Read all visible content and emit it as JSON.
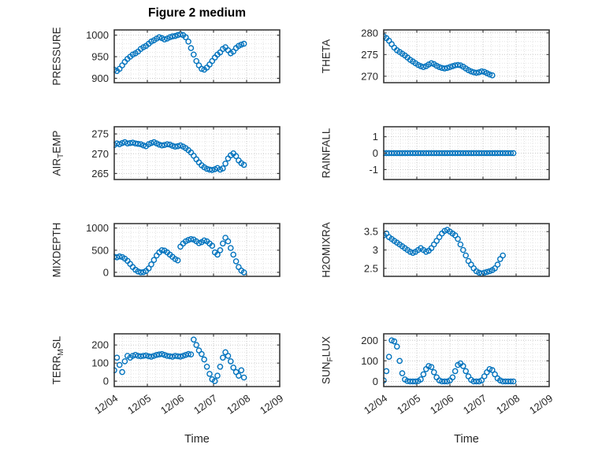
{
  "title": "Figure 2 medium",
  "xlabel": "Time",
  "accent_color": "#0072BD",
  "grid_major_color": "#c8c8c8",
  "grid_minor_color": "#e3e3e3",
  "axis_color": "#3b3b3b",
  "x_ticks": [
    4,
    5,
    6,
    7,
    8,
    9
  ],
  "x_tick_labels": [
    "12/04",
    "12/05",
    "12/06",
    "12/07",
    "12/08",
    "12/09"
  ],
  "chart_data": [
    {
      "name": "PRESSURE",
      "type": "scatter",
      "row": 0,
      "col": 0,
      "ylabel": {
        "pre": "PRESSURE",
        "sub": "",
        "post": ""
      },
      "yticks": [
        900,
        950,
        1000
      ],
      "ylim": [
        890,
        1012
      ],
      "xlim": [
        4,
        9
      ],
      "x_start": 4.0,
      "x_step": 0.08,
      "y": [
        920,
        917,
        922,
        930,
        938,
        945,
        950,
        955,
        958,
        962,
        968,
        972,
        975,
        980,
        985,
        988,
        992,
        995,
        993,
        990,
        992,
        995,
        997,
        998,
        1000,
        1002,
        1000,
        995,
        985,
        970,
        955,
        940,
        930,
        922,
        920,
        925,
        932,
        940,
        948,
        955,
        960,
        968,
        972,
        965,
        958,
        962,
        970,
        975,
        978,
        980
      ]
    },
    {
      "name": "THETA",
      "type": "scatter",
      "row": 0,
      "col": 1,
      "ylabel": {
        "pre": "THETA",
        "sub": "",
        "post": ""
      },
      "yticks": [
        270,
        275,
        280
      ],
      "ylim": [
        268.5,
        280.7
      ],
      "xlim": [
        4,
        9
      ],
      "x_start": 4.0,
      "x_step": 0.08,
      "y": [
        279.2,
        278.8,
        278.2,
        277.4,
        276.6,
        276.0,
        275.6,
        275.2,
        274.8,
        274.3,
        273.8,
        273.4,
        273.0,
        272.6,
        272.3,
        272.1,
        272.3,
        272.7,
        273.0,
        272.8,
        272.4,
        272.1,
        271.9,
        271.8,
        271.9,
        272.1,
        272.3,
        272.5,
        272.6,
        272.5,
        272.2,
        271.8,
        271.4,
        271.1,
        270.9,
        270.8,
        270.9,
        271.1,
        271.0,
        270.7,
        270.4,
        270.2
      ]
    },
    {
      "name": "AIR_TEMP",
      "type": "scatter",
      "row": 1,
      "col": 0,
      "ylabel": {
        "pre": "AIR",
        "sub": "T",
        "post": "EMP"
      },
      "yticks": [
        265,
        270,
        275
      ],
      "ylim": [
        263.5,
        276.8
      ],
      "xlim": [
        4,
        9
      ],
      "x_start": 4.0,
      "x_step": 0.08,
      "y": [
        272.2,
        272.6,
        272.4,
        272.7,
        272.9,
        272.6,
        272.7,
        272.8,
        272.6,
        272.5,
        272.4,
        272.1,
        271.9,
        272.4,
        272.7,
        272.9,
        272.6,
        272.3,
        272.1,
        272.2,
        272.4,
        272.3,
        272.0,
        271.8,
        271.9,
        272.1,
        271.8,
        271.4,
        270.9,
        270.3,
        269.5,
        268.6,
        267.8,
        267.1,
        266.6,
        266.2,
        266.0,
        265.9,
        266.1,
        266.4,
        266.0,
        266.3,
        267.5,
        268.8,
        269.6,
        270.1,
        269.4,
        268.3,
        267.6,
        267.2
      ]
    },
    {
      "name": "RAINFALL",
      "type": "scatter",
      "row": 1,
      "col": 1,
      "ylabel": {
        "pre": "RAINFALL",
        "sub": "",
        "post": ""
      },
      "yticks": [
        -1,
        0,
        1
      ],
      "ylim": [
        -1.6,
        1.6
      ],
      "xlim": [
        4,
        9
      ],
      "x_start": 4.0,
      "x_step": 0.08,
      "y": [
        0,
        0,
        0,
        0,
        0,
        0,
        0,
        0,
        0,
        0,
        0,
        0,
        0,
        0,
        0,
        0,
        0,
        0,
        0,
        0,
        0,
        0,
        0,
        0,
        0,
        0,
        0,
        0,
        0,
        0,
        0,
        0,
        0,
        0,
        0,
        0,
        0,
        0,
        0,
        0,
        0,
        0,
        0,
        0,
        0,
        0,
        0,
        0,
        0,
        0
      ]
    },
    {
      "name": "MIXDEPTH",
      "type": "scatter",
      "row": 2,
      "col": 0,
      "ylabel": {
        "pre": "MIXDEPTH",
        "sub": "",
        "post": ""
      },
      "yticks": [
        0,
        500,
        1000
      ],
      "ylim": [
        -90,
        1100
      ],
      "xlim": [
        4,
        9
      ],
      "x_start": 4.0,
      "x_step": 0.08,
      "y": [
        350,
        340,
        360,
        345,
        310,
        260,
        190,
        120,
        60,
        20,
        0,
        5,
        30,
        90,
        180,
        280,
        380,
        450,
        500,
        490,
        450,
        400,
        350,
        300,
        270,
        580,
        650,
        700,
        730,
        750,
        740,
        700,
        660,
        680,
        720,
        700,
        650,
        600,
        450,
        400,
        500,
        650,
        780,
        700,
        550,
        400,
        250,
        120,
        40,
        0
      ]
    },
    {
      "name": "H2OMIXRA",
      "type": "scatter",
      "row": 2,
      "col": 1,
      "ylabel": {
        "pre": "H2OMIXRA",
        "sub": "",
        "post": ""
      },
      "yticks": [
        2.5,
        3,
        3.5
      ],
      "ylim": [
        2.28,
        3.72
      ],
      "xlim": [
        4,
        9
      ],
      "x_start": 4.0,
      "x_step": 0.08,
      "y": [
        3.4,
        3.45,
        3.35,
        3.3,
        3.25,
        3.2,
        3.15,
        3.1,
        3.05,
        3.0,
        2.95,
        2.92,
        2.95,
        3.0,
        3.05,
        3.0,
        2.95,
        2.98,
        3.05,
        3.15,
        3.25,
        3.35,
        3.45,
        3.52,
        3.55,
        3.5,
        3.45,
        3.4,
        3.3,
        3.15,
        3.0,
        2.85,
        2.7,
        2.6,
        2.5,
        2.42,
        2.38,
        2.36,
        2.38,
        2.4,
        2.42,
        2.45,
        2.5,
        2.6,
        2.75,
        2.85
      ]
    },
    {
      "name": "TERR_MSL",
      "type": "scatter",
      "row": 3,
      "col": 0,
      "ylabel": {
        "pre": "TERR",
        "sub": "M",
        "post": "SL"
      },
      "yticks": [
        0,
        100,
        200
      ],
      "ylim": [
        -30,
        262
      ],
      "xlim": [
        4,
        9
      ],
      "x_start": 4.0,
      "x_step": 0.08,
      "y": [
        60,
        130,
        90,
        50,
        110,
        140,
        130,
        140,
        145,
        140,
        138,
        140,
        142,
        138,
        135,
        140,
        145,
        148,
        150,
        145,
        140,
        138,
        135,
        140,
        138,
        136,
        140,
        145,
        150,
        148,
        230,
        200,
        170,
        150,
        120,
        80,
        40,
        10,
        0,
        30,
        80,
        130,
        160,
        140,
        110,
        75,
        50,
        30,
        60,
        20
      ]
    },
    {
      "name": "SUN_FLUX",
      "type": "scatter",
      "row": 3,
      "col": 1,
      "ylabel": {
        "pre": "SUN",
        "sub": "F",
        "post": "LUX"
      },
      "yticks": [
        0,
        100,
        200
      ],
      "ylim": [
        -25,
        232
      ],
      "xlim": [
        4,
        9
      ],
      "x_start": 4.0,
      "x_step": 0.08,
      "y": [
        5,
        50,
        120,
        200,
        195,
        170,
        100,
        40,
        10,
        2,
        0,
        0,
        0,
        2,
        10,
        35,
        60,
        75,
        70,
        45,
        20,
        5,
        0,
        0,
        0,
        5,
        20,
        50,
        80,
        88,
        75,
        50,
        25,
        8,
        0,
        0,
        0,
        5,
        25,
        45,
        60,
        55,
        35,
        15,
        5,
        0,
        0,
        0,
        0,
        0
      ]
    }
  ]
}
